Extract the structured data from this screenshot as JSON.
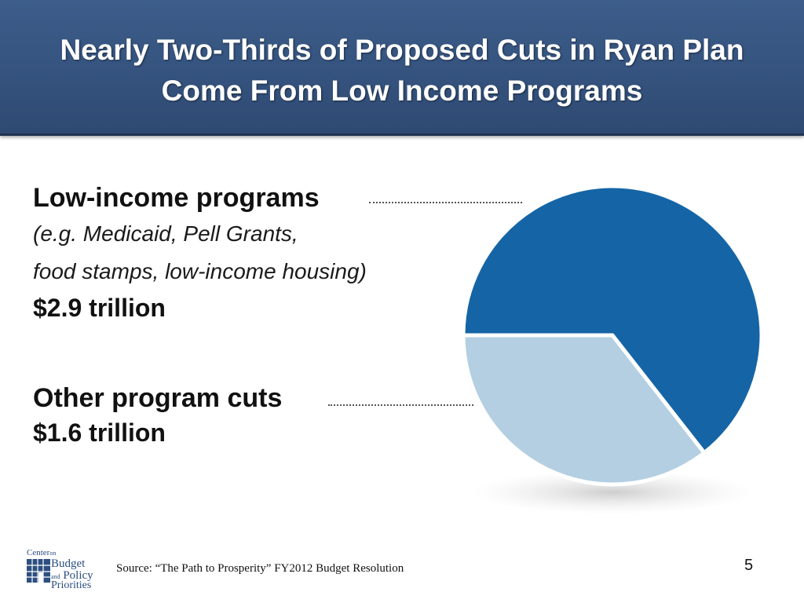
{
  "header": {
    "title_line1": "Nearly Two-Thirds of Proposed Cuts in Ryan Plan",
    "title_line2": "Come From Low Income Programs"
  },
  "chart_data": {
    "type": "pie",
    "slices": [
      {
        "name": "Low-income programs",
        "value": 2.9,
        "color": "#1565a6"
      },
      {
        "name": "Other program cuts",
        "value": 1.6,
        "color": "#b4cfe2"
      }
    ],
    "labels": {
      "low_income": {
        "title": "Low-income programs",
        "detail_line1": "(e.g. Medicaid, Pell Grants,",
        "detail_line2": "food stamps, low-income housing)",
        "amount": "$2.9 trillion"
      },
      "other": {
        "title": "Other program cuts",
        "amount": "$1.6 trillion"
      }
    }
  },
  "footer": {
    "logo": {
      "line1": "Center",
      "line1_small": "on",
      "line2": "Budget",
      "line3_small": "and",
      "line3": "Policy",
      "line4": "Priorities"
    },
    "source": "Source: “The Path to Prosperity” FY2012 Budget Resolution",
    "page_number": "5"
  }
}
